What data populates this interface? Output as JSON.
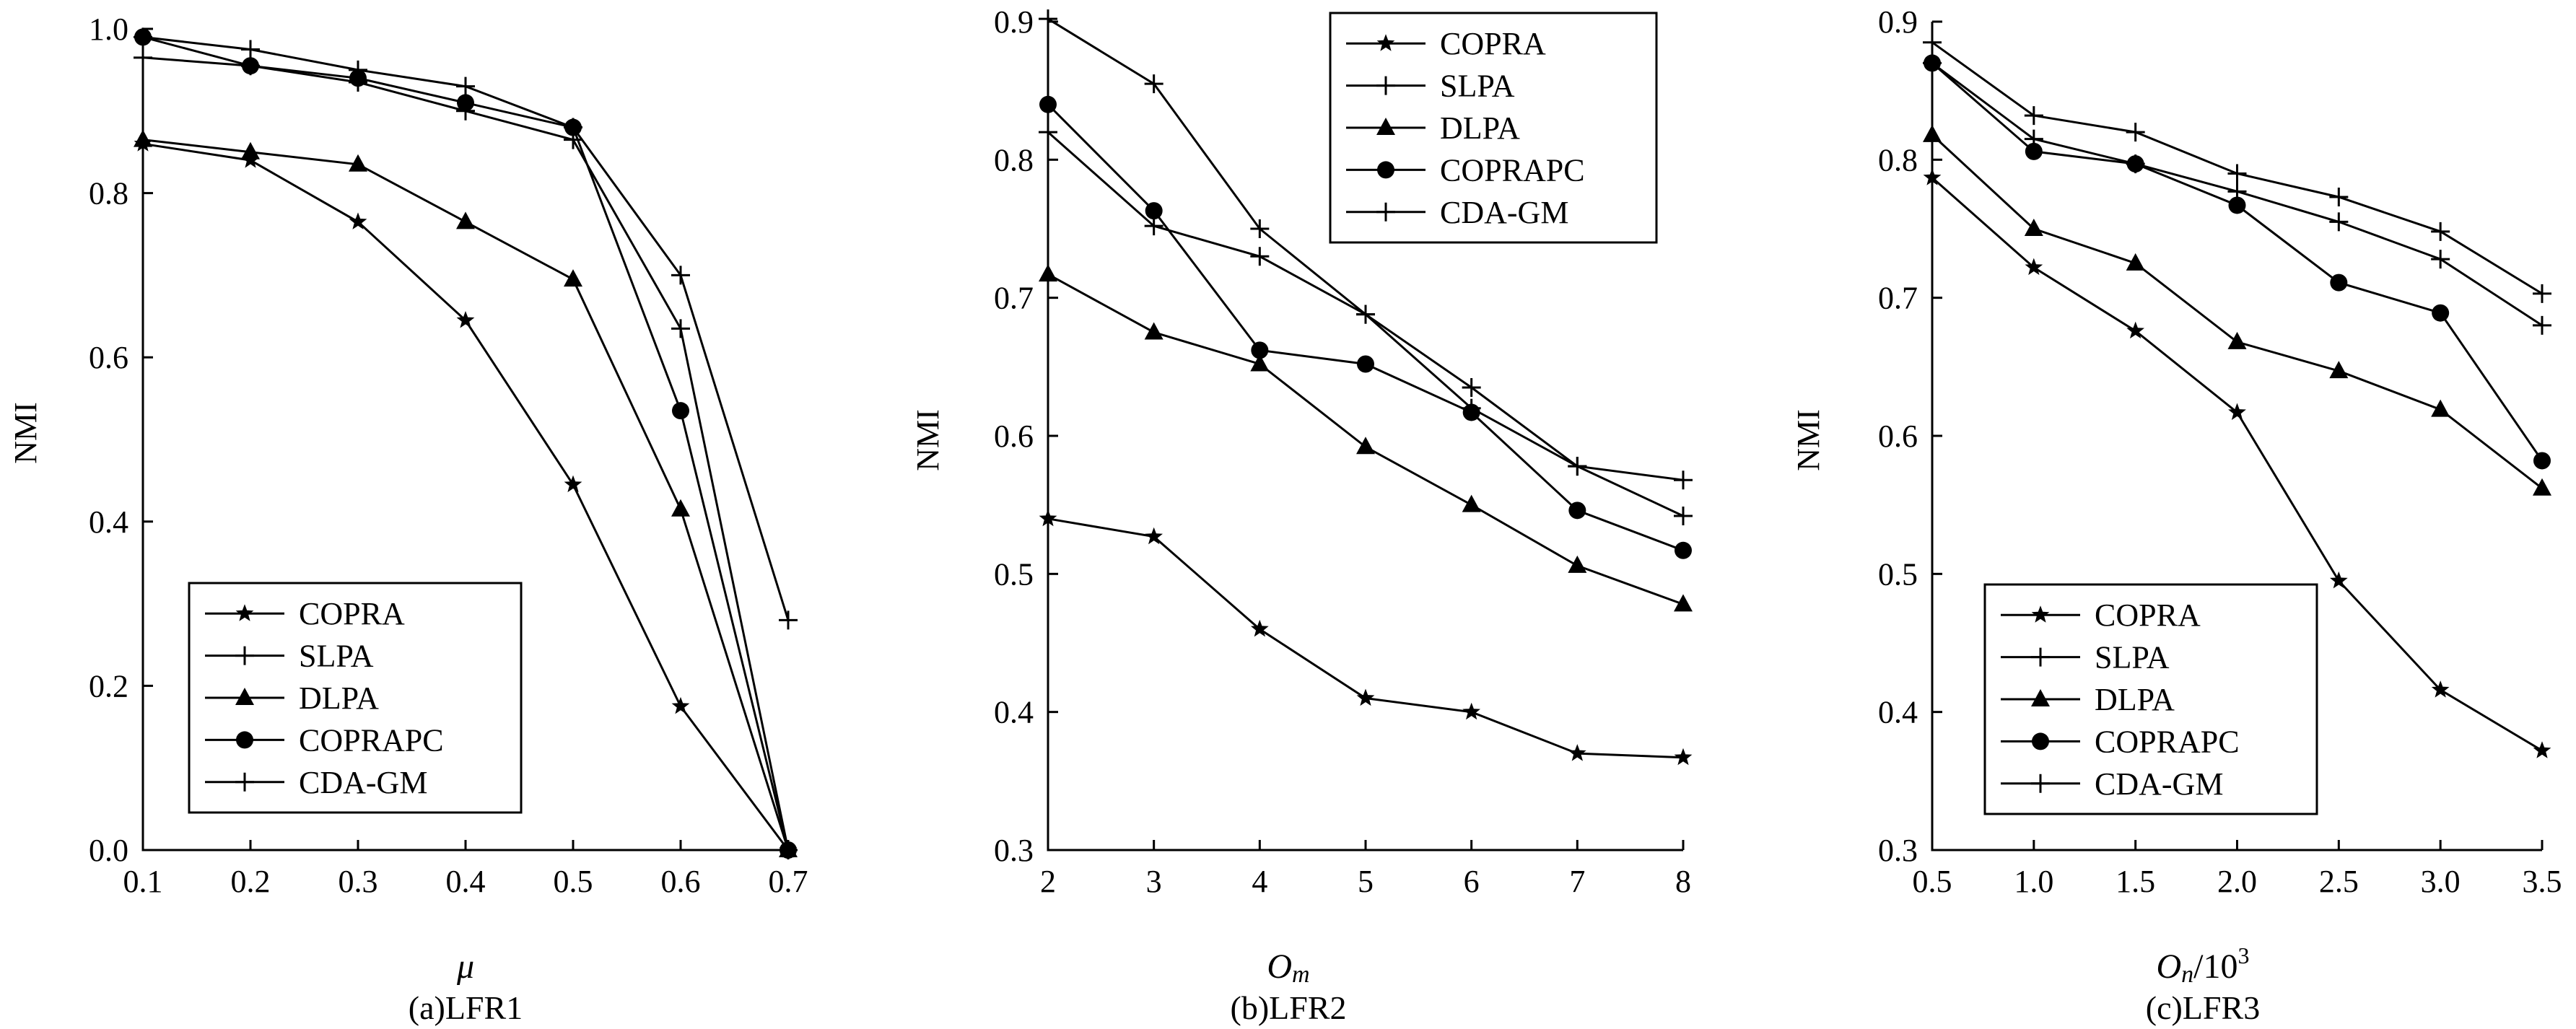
{
  "chart_data": [
    {
      "type": "line",
      "caption": "(a)LFR1",
      "xlabel": "μ",
      "ylabel": "NMI",
      "x": [
        0.1,
        0.2,
        0.3,
        0.4,
        0.5,
        0.6,
        0.7
      ],
      "x_ticks": [
        "0.1",
        "0.2",
        "0.3",
        "0.4",
        "0.5",
        "0.6",
        "0.7"
      ],
      "xlim": [
        0.1,
        0.7
      ],
      "y_ticks": [
        "0.0",
        "0.2",
        "0.4",
        "0.6",
        "0.8",
        "1.0"
      ],
      "ylim": [
        0.0,
        1.0
      ],
      "legend_position": "bottom-left",
      "series": [
        {
          "name": "COPRA",
          "marker": "star",
          "values": [
            0.86,
            0.84,
            0.765,
            0.645,
            0.445,
            0.175,
            0.0
          ]
        },
        {
          "name": "SLPA",
          "marker": "plus",
          "values": [
            0.965,
            0.955,
            0.935,
            0.9,
            0.865,
            0.635,
            0.0
          ]
        },
        {
          "name": "DLPA",
          "marker": "triangle",
          "values": [
            0.865,
            0.85,
            0.835,
            0.765,
            0.695,
            0.415,
            0.0
          ]
        },
        {
          "name": "COPRAPC",
          "marker": "circle",
          "values": [
            0.99,
            0.955,
            0.94,
            0.91,
            0.88,
            0.535,
            0.0
          ]
        },
        {
          "name": "CDA-GM",
          "marker": "plus",
          "values": [
            0.99,
            0.975,
            0.95,
            0.93,
            0.88,
            0.7,
            0.28
          ]
        }
      ]
    },
    {
      "type": "line",
      "caption": "(b)LFR2",
      "xlabel": "Om",
      "ylabel": "NMI",
      "x": [
        2,
        3,
        4,
        5,
        6,
        7,
        8
      ],
      "x_ticks": [
        "2",
        "3",
        "4",
        "5",
        "6",
        "7",
        "8"
      ],
      "xlim": [
        2,
        8
      ],
      "y_ticks": [
        "0.3",
        "0.4",
        "0.5",
        "0.6",
        "0.7",
        "0.8",
        "0.9"
      ],
      "ylim": [
        0.3,
        0.9
      ],
      "legend_position": "top-right",
      "series": [
        {
          "name": "COPRA",
          "marker": "star",
          "values": [
            0.54,
            0.527,
            0.46,
            0.41,
            0.4,
            0.37,
            0.367
          ]
        },
        {
          "name": "SLPA",
          "marker": "plus",
          "values": [
            0.82,
            0.752,
            0.73,
            0.688,
            0.62,
            0.578,
            0.542
          ]
        },
        {
          "name": "DLPA",
          "marker": "triangle",
          "values": [
            0.717,
            0.675,
            0.652,
            0.592,
            0.55,
            0.506,
            0.478
          ]
        },
        {
          "name": "COPRAPC",
          "marker": "circle",
          "values": [
            0.84,
            0.763,
            0.662,
            0.652,
            0.617,
            0.546,
            0.517
          ]
        },
        {
          "name": "CDA-GM",
          "marker": "plus",
          "values": [
            0.902,
            0.855,
            0.75,
            0.688,
            0.635,
            0.578,
            0.568
          ]
        }
      ]
    },
    {
      "type": "line",
      "caption": "(c)LFR3",
      "xlabel": "On/10",
      "xlabel_sup": "3",
      "ylabel": "NMI",
      "x": [
        0.5,
        1.0,
        1.5,
        2.0,
        2.5,
        3.0,
        3.5
      ],
      "x_ticks": [
        "0.5",
        "1.0",
        "1.5",
        "2.0",
        "2.5",
        "3.0",
        "3.5"
      ],
      "xlim": [
        0.5,
        3.5
      ],
      "y_ticks": [
        "0.3",
        "0.4",
        "0.5",
        "0.6",
        "0.7",
        "0.8",
        "0.9"
      ],
      "ylim": [
        0.3,
        0.9
      ],
      "legend_position": "bottom-left",
      "series": [
        {
          "name": "COPRA",
          "marker": "star",
          "values": [
            0.787,
            0.722,
            0.676,
            0.617,
            0.495,
            0.416,
            0.372
          ]
        },
        {
          "name": "SLPA",
          "marker": "plus",
          "values": [
            0.87,
            0.815,
            0.797,
            0.777,
            0.755,
            0.728,
            0.68
          ]
        },
        {
          "name": "DLPA",
          "marker": "triangle",
          "values": [
            0.818,
            0.75,
            0.725,
            0.668,
            0.647,
            0.619,
            0.562
          ]
        },
        {
          "name": "COPRAPC",
          "marker": "circle",
          "values": [
            0.87,
            0.806,
            0.797,
            0.767,
            0.711,
            0.689,
            0.582
          ]
        },
        {
          "name": "CDA-GM",
          "marker": "plus",
          "values": [
            0.885,
            0.832,
            0.82,
            0.79,
            0.773,
            0.748,
            0.703
          ]
        }
      ]
    }
  ]
}
